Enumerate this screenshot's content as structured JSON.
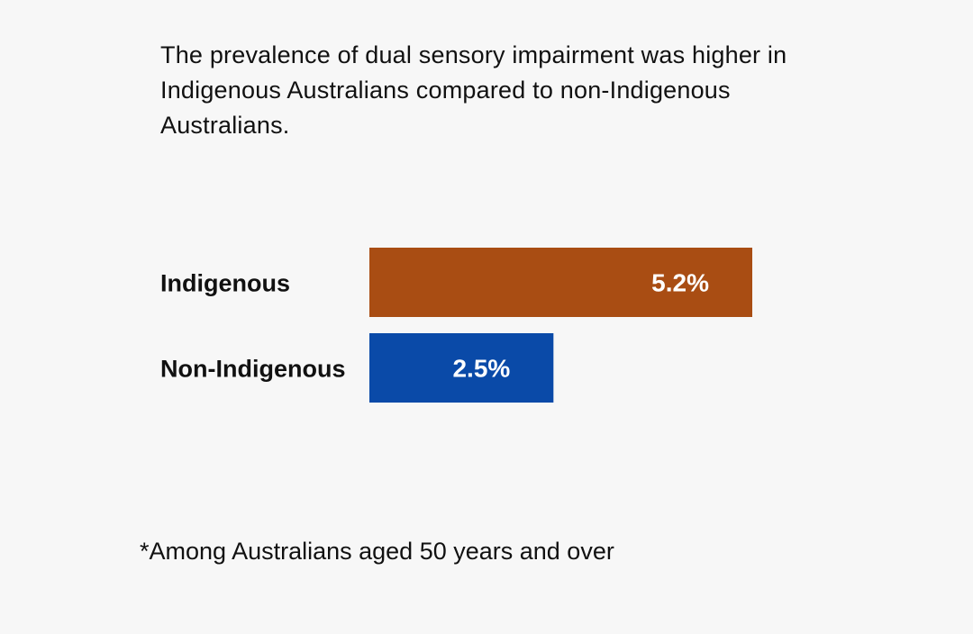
{
  "headline": "The prevalence of dual sensory impairment was higher in Indigenous Australians compared to non-Indigenous Australians.",
  "footnote": "*Among Australians aged 50 years and over",
  "chart_data": {
    "type": "bar",
    "orientation": "horizontal",
    "categories": [
      "Indigenous",
      "Non-Indigenous"
    ],
    "values": [
      5.2,
      2.5
    ],
    "value_labels": [
      "5.2%",
      "2.5%"
    ],
    "colors": [
      "#a94d13",
      "#0a4aa8"
    ],
    "title": "",
    "xlabel": "",
    "ylabel": "",
    "grid": false,
    "legend": "none"
  }
}
